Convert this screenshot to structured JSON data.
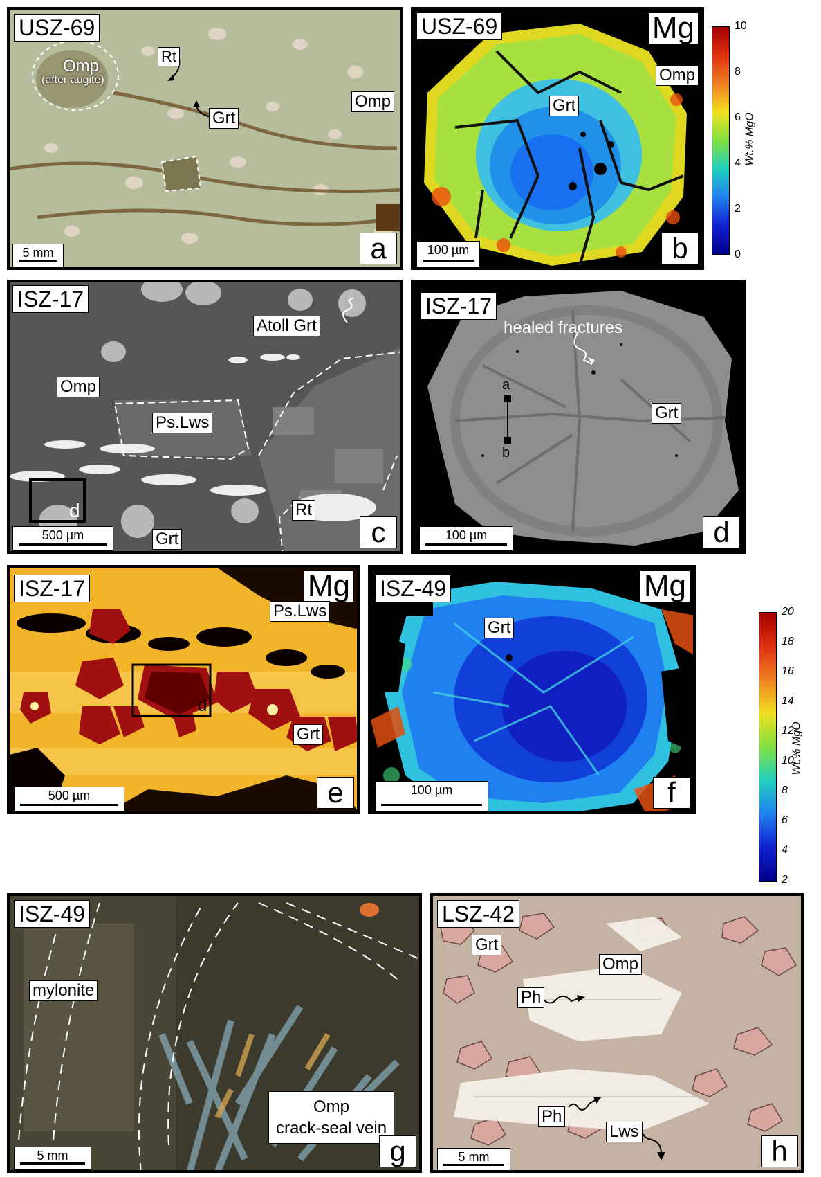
{
  "panels": {
    "a": {
      "sample": "USZ-69",
      "letter": "a",
      "scale": "5 mm",
      "labels": {
        "omp_augite": "Omp",
        "after_augite": "(after augite)",
        "rt": "Rt",
        "grt": "Grt",
        "omp": "Omp"
      }
    },
    "b": {
      "sample": "USZ-69",
      "element": "Mg",
      "letter": "b",
      "scale": "100 µm",
      "labels": {
        "omp": "Omp",
        "grt": "Grt"
      },
      "colorbar": {
        "title": "Wt.% MgO",
        "ticks": [
          "10",
          "8",
          "6",
          "4",
          "2",
          "0"
        ],
        "min": 0,
        "max": 10
      }
    },
    "c": {
      "sample": "ISZ-17",
      "letter": "c",
      "scale": "500 µm",
      "labels": {
        "atoll": "Atoll Grt",
        "omp": "Omp",
        "pslws": "Ps.Lws",
        "d": "d",
        "rt": "Rt",
        "grt": "Grt"
      }
    },
    "d": {
      "sample": "ISZ-17",
      "letter": "d",
      "scale": "100 µm",
      "labels": {
        "healed": "healed fractures",
        "a": "a",
        "b": "b",
        "grt": "Grt"
      }
    },
    "e": {
      "sample": "ISZ-17",
      "element": "Mg",
      "letter": "e",
      "scale": "500 µm",
      "labels": {
        "pslws": "Ps.Lws",
        "d": "d",
        "grt": "Grt"
      }
    },
    "f": {
      "sample": "ISZ-49",
      "element": "Mg",
      "letter": "f",
      "scale": "100 µm",
      "labels": {
        "grt": "Grt"
      },
      "colorbar": {
        "title": "Wt.% MgO",
        "ticks": [
          "20",
          "18",
          "16",
          "14",
          "12",
          "10",
          "8",
          "6",
          "4",
          "2"
        ],
        "min": 2,
        "max": 20
      }
    },
    "g": {
      "sample": "ISZ-49",
      "letter": "g",
      "scale": "5 mm",
      "labels": {
        "mylonite": "mylonite",
        "omp": "Omp",
        "vein": "crack-seal vein"
      }
    },
    "h": {
      "sample": "LSZ-42",
      "letter": "h",
      "scale": "5 mm",
      "labels": {
        "grt": "Grt",
        "omp": "Omp",
        "ph1": "Ph",
        "ph2": "Ph",
        "lws": "Lws"
      }
    }
  },
  "colors": {
    "rainbow_low": "#00008b",
    "rainbow_high": "#a50000",
    "bse_matrix": "#5a5a5a",
    "mg_matrix": "#f0b020"
  }
}
